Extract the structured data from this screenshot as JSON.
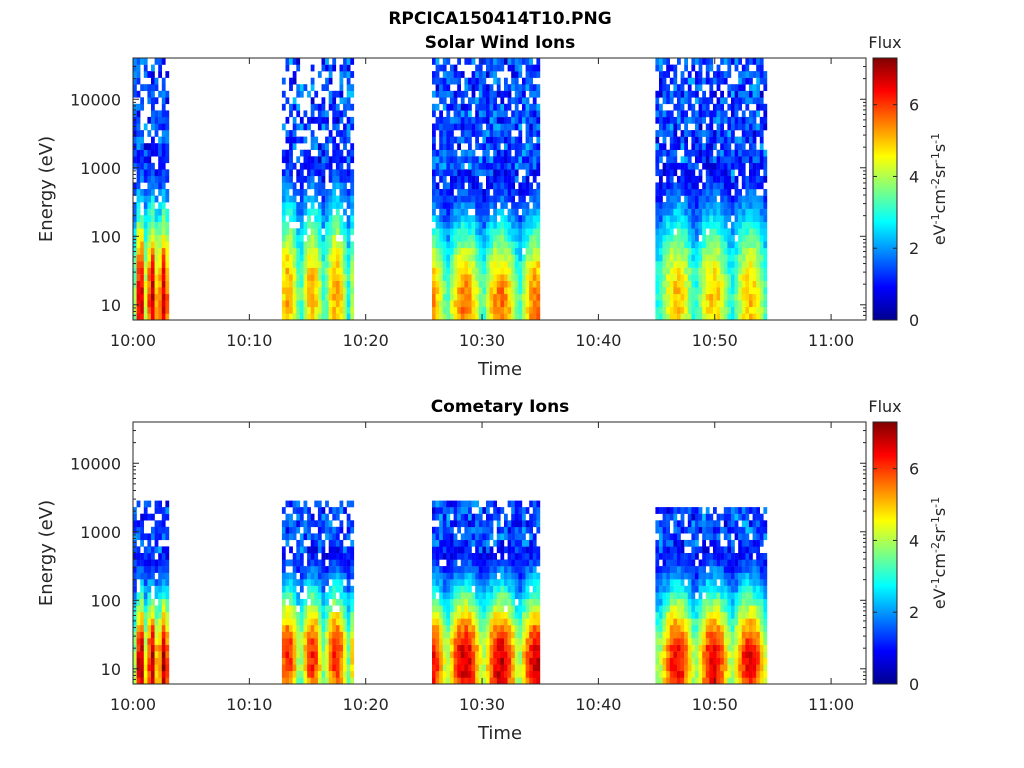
{
  "figure": {
    "title": "RPCICA150414T10.PNG",
    "colors": {
      "colormap": "jet",
      "axis": "#262626",
      "background": "#ffffff"
    }
  },
  "chart_data": [
    {
      "type": "heatmap",
      "title": "Solar Wind Ions",
      "xlabel": "Time",
      "ylabel": "Energy (eV)",
      "x_range": [
        "10:00",
        "11:03"
      ],
      "x_ticks": [
        "10:00",
        "10:10",
        "10:20",
        "10:30",
        "10:40",
        "10:50",
        "11:00"
      ],
      "y_scale": "log",
      "y_range": [
        6,
        40000
      ],
      "y_ticks": [
        10,
        100,
        1000,
        10000
      ],
      "y_tick_labels": [
        "10",
        "100",
        "1000",
        "10000"
      ],
      "colorbar": {
        "title": "Flux",
        "label": "eV-1cm-2sr-1s-1",
        "range": [
          0,
          7.3
        ],
        "ticks": [
          0,
          2,
          4,
          6
        ],
        "tick_labels": [
          "0",
          "2",
          "4",
          "6"
        ]
      },
      "blocks": [
        {
          "start_min": 0.0,
          "end_min": 3.0,
          "peak_energy_eV": 12,
          "peak_flux": 6.8,
          "spread": 1.05,
          "high_energy_extent": 4.6,
          "sparsity": 0.45
        },
        {
          "start_min": 12.8,
          "end_min": 19.0,
          "peak_energy_eV": 15,
          "peak_flux": 5.2,
          "spread": 1.1,
          "high_energy_extent": 4.6,
          "sparsity": 0.55
        },
        {
          "start_min": 25.7,
          "end_min": 35.0,
          "peak_energy_eV": 10,
          "peak_flux": 5.6,
          "spread": 1.0,
          "high_energy_extent": 4.6,
          "sparsity": 0.25
        },
        {
          "start_min": 44.9,
          "end_min": 54.3,
          "peak_energy_eV": 12,
          "peak_flux": 5.0,
          "spread": 1.05,
          "high_energy_extent": 4.6,
          "sparsity": 0.3
        }
      ]
    },
    {
      "type": "heatmap",
      "title": "Cometary Ions",
      "xlabel": "Time",
      "ylabel": "Energy (eV)",
      "x_range": [
        "10:00",
        "11:03"
      ],
      "x_ticks": [
        "10:00",
        "10:10",
        "10:20",
        "10:30",
        "10:40",
        "10:50",
        "11:00"
      ],
      "y_scale": "log",
      "y_range": [
        6,
        40000
      ],
      "y_ticks": [
        10,
        100,
        1000,
        10000
      ],
      "y_tick_labels": [
        "10",
        "100",
        "1000",
        "10000"
      ],
      "colorbar": {
        "title": "Flux",
        "label": "eV-1cm-2sr-1s-1",
        "range": [
          0,
          7.3
        ],
        "ticks": [
          0,
          2,
          4,
          6
        ],
        "tick_labels": [
          "0",
          "2",
          "4",
          "6"
        ]
      },
      "blocks": [
        {
          "start_min": 0.0,
          "end_min": 3.0,
          "peak_energy_eV": 12,
          "peak_flux": 7.0,
          "spread": 0.8,
          "high_energy_extent": 3.5,
          "sparsity": 0.35
        },
        {
          "start_min": 12.8,
          "end_min": 19.0,
          "peak_energy_eV": 15,
          "peak_flux": 6.2,
          "spread": 0.8,
          "high_energy_extent": 3.5,
          "sparsity": 0.4
        },
        {
          "start_min": 25.7,
          "end_min": 35.0,
          "peak_energy_eV": 12,
          "peak_flux": 6.8,
          "spread": 0.85,
          "high_energy_extent": 3.5,
          "sparsity": 0.2
        },
        {
          "start_min": 44.9,
          "end_min": 54.3,
          "peak_energy_eV": 12,
          "peak_flux": 6.5,
          "spread": 0.85,
          "high_energy_extent": 3.4,
          "sparsity": 0.2
        }
      ]
    }
  ]
}
